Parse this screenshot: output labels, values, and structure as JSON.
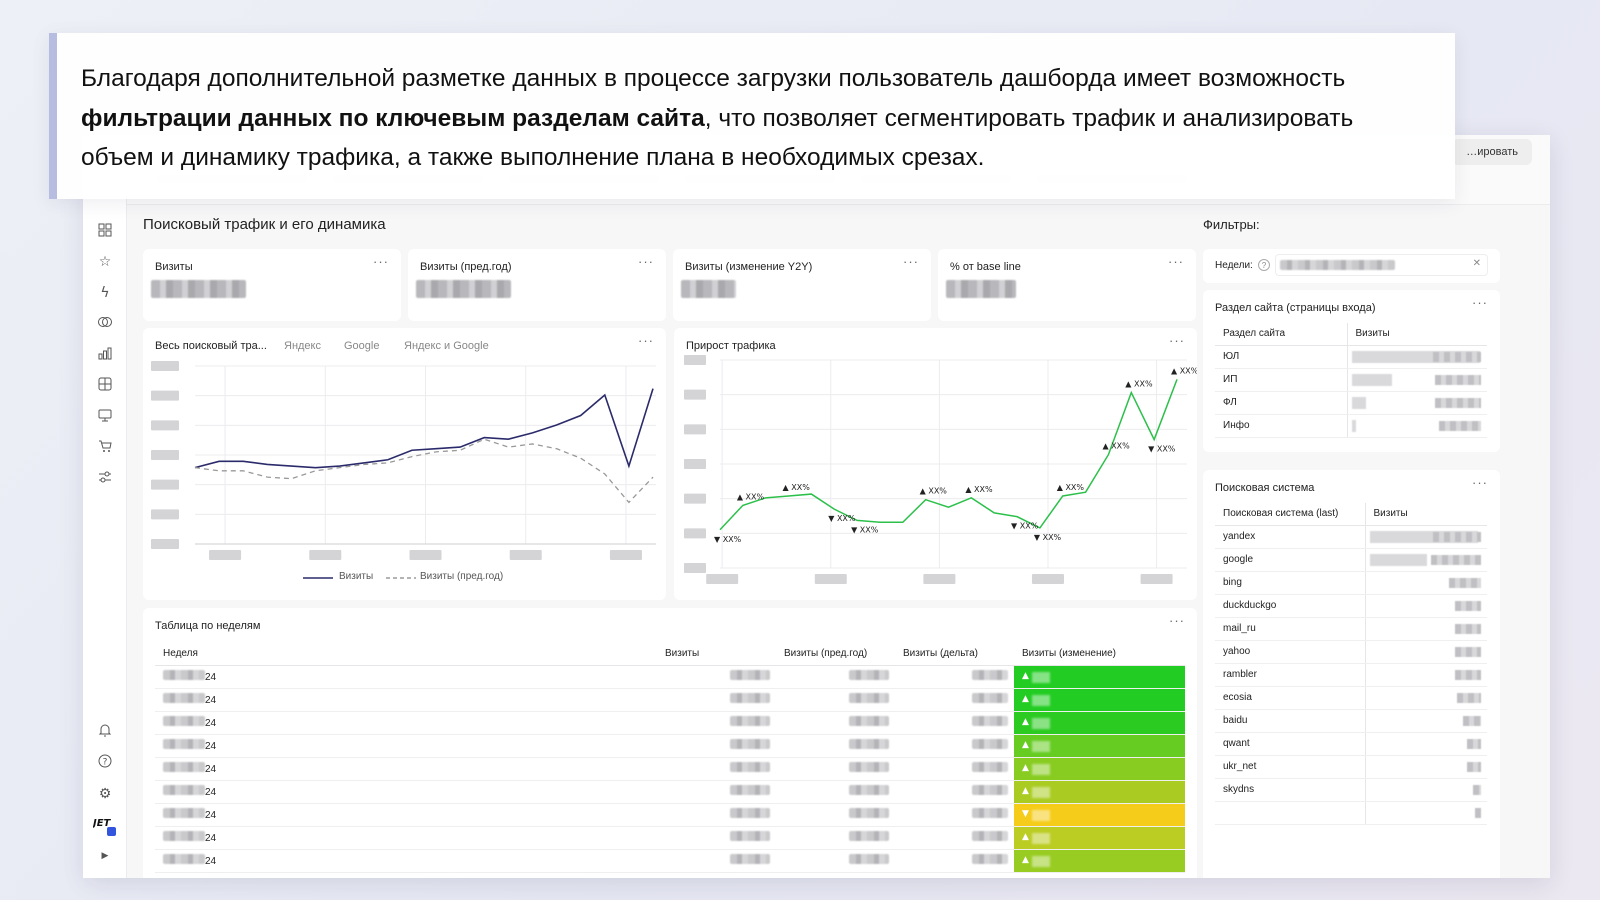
{
  "banner": {
    "text_before": "Благодаря дополнительной разметке данных в процессе загрузки пользователь дашборда имеет возможность ",
    "text_bold": "фильтрации данных по ключевым разделам сайта",
    "text_after": ", что позволяет сегментировать трафик и анализировать объем и динамику трафика, а также выполнение плана в необходимых срезах."
  },
  "toolbar": {
    "edit_label": "…ировать"
  },
  "rail_icons": [
    "grid-icon",
    "star-icon",
    "bolt-icon",
    "rings-icon",
    "bar-chart-icon",
    "table-icon",
    "monitor-icon",
    "cart-icon",
    "sliders-icon",
    "bell-icon",
    "help-icon",
    "settings-icon",
    "logo-icon",
    "expand-icon"
  ],
  "main": {
    "section_title": "Поисковый трафик и его динамика",
    "kpis": [
      {
        "title": "Визиты"
      },
      {
        "title": "Визиты (пред.год)"
      },
      {
        "title": "Визиты (изменение Y2Y)"
      },
      {
        "title": "% от base line"
      }
    ],
    "traffic_chart": {
      "title": "Весь поисковый тра...",
      "tabs": [
        "Яндекс",
        "Google",
        "Яндекс и Google"
      ],
      "legend": [
        "Визиты",
        "Визиты (пред.год)"
      ]
    },
    "growth_chart": {
      "title": "Прирост трафика"
    },
    "weekly_table": {
      "title": "Таблица по неделям",
      "columns": [
        "Неделя",
        "Визиты",
        "Визиты (пред.год)",
        "Визиты (дельта)",
        "Визиты (изменение)"
      ],
      "rows": [
        {
          "week": "24",
          "dir": "▲",
          "color": "#22cc22"
        },
        {
          "week": "24",
          "dir": "▲",
          "color": "#22cc22"
        },
        {
          "week": "24",
          "dir": "▲",
          "color": "#2ccb22"
        },
        {
          "week": "24",
          "dir": "▲",
          "color": "#66cc22"
        },
        {
          "week": "24",
          "dir": "▲",
          "color": "#88cc22"
        },
        {
          "week": "24",
          "dir": "▲",
          "color": "#aacc22"
        },
        {
          "week": "24",
          "dir": "▼",
          "color": "#f5cc1a"
        },
        {
          "week": "24",
          "dir": "▲",
          "color": "#bbcc22"
        },
        {
          "week": "24",
          "dir": "▲",
          "color": "#99cc22"
        }
      ]
    }
  },
  "filters": {
    "title": "Фильтры:",
    "weeks_label": "Недели:",
    "help_icon": "?",
    "clear_icon": "✕",
    "site_section": {
      "title": "Раздел сайта (страницы входа)",
      "columns": [
        "Раздел сайта",
        "Визиты"
      ],
      "rows": [
        {
          "name": "ЮЛ",
          "share": 1.0
        },
        {
          "name": "ИП",
          "share": 0.32
        },
        {
          "name": "ФЛ",
          "share": 0.11
        },
        {
          "name": "Инфо",
          "share": 0.02
        }
      ]
    },
    "search_engine": {
      "title": "Поисковая система",
      "columns": [
        "Поисковая система (last)",
        "Визиты"
      ],
      "rows": [
        {
          "name": "yandex",
          "share": 1.0
        },
        {
          "name": "google",
          "share": 0.53
        },
        {
          "name": "bing",
          "share": 0.0
        },
        {
          "name": "duckduckgo",
          "share": 0.0
        },
        {
          "name": "mail_ru",
          "share": 0.0
        },
        {
          "name": "yahoo",
          "share": 0.0
        },
        {
          "name": "rambler",
          "share": 0.0
        },
        {
          "name": "ecosia",
          "share": 0.0
        },
        {
          "name": "baidu",
          "share": 0.0
        },
        {
          "name": "qwant",
          "share": 0.0
        },
        {
          "name": "ukr_net",
          "share": 0.0
        },
        {
          "name": "skydns",
          "share": 0.0
        }
      ]
    }
  },
  "chart_data": [
    {
      "type": "line",
      "title": "Весь поисковый тра...",
      "series": [
        {
          "name": "Визиты",
          "values": [
            0.42,
            0.46,
            0.46,
            0.44,
            0.43,
            0.42,
            0.43,
            0.45,
            0.47,
            0.53,
            0.54,
            0.55,
            0.61,
            0.6,
            0.64,
            0.69,
            0.75,
            0.88,
            0.43,
            0.92
          ]
        },
        {
          "name": "Визиты (пред.год)",
          "values": [
            0.42,
            0.4,
            0.4,
            0.36,
            0.35,
            0.4,
            0.42,
            0.44,
            0.45,
            0.49,
            0.52,
            0.53,
            0.6,
            0.55,
            0.57,
            0.54,
            0.48,
            0.38,
            0.2,
            0.36
          ]
        }
      ]
    },
    {
      "type": "line",
      "title": "Прирост трафика",
      "series": [
        {
          "name": "",
          "values": [
            0.15,
            0.28,
            0.32,
            0.33,
            0.34,
            0.26,
            0.2,
            0.19,
            0.19,
            0.31,
            0.27,
            0.32,
            0.24,
            0.22,
            0.16,
            0.33,
            0.35,
            0.55,
            0.88,
            0.63,
            0.95
          ]
        }
      ],
      "labels": [
        "▼ XX%",
        "▲ XX%",
        "",
        "▲ XX%",
        "",
        "▼ XX%",
        "▼ XX%",
        "",
        "",
        "▲ XX%",
        "",
        "▲ XX%",
        "",
        "▼ XX%",
        "▼ XX%",
        "▲ XX%",
        "",
        "▲ XX%",
        "▲ XX%",
        "▼ XX%",
        "▲ XX%"
      ]
    }
  ]
}
